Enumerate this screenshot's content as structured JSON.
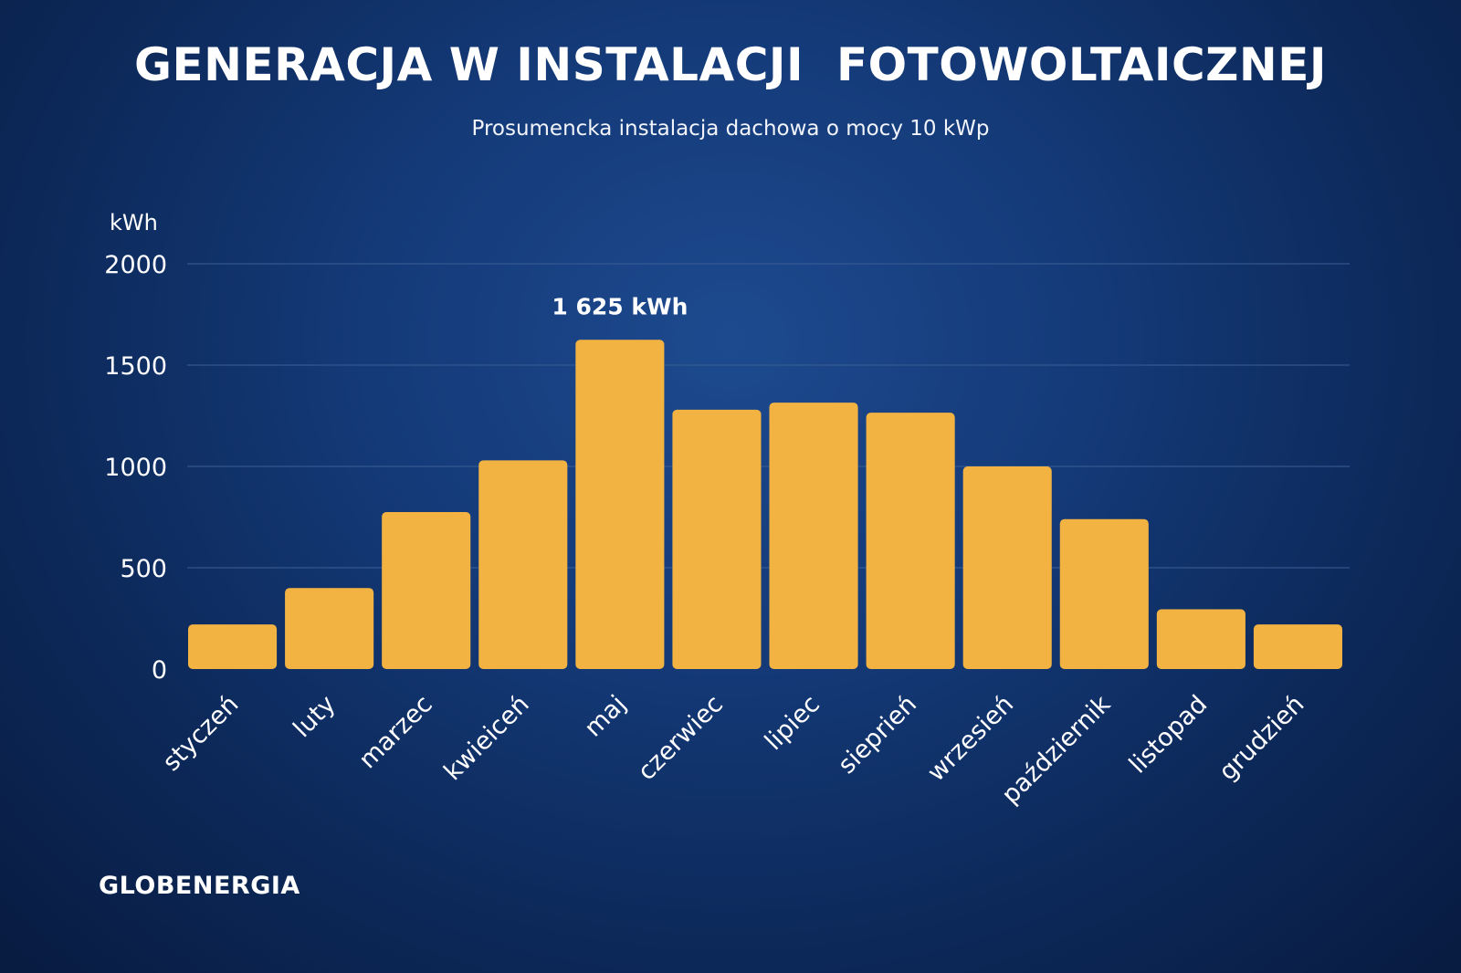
{
  "header": {
    "title": "GENERACJA W INSTALACJI  FOTOWOLTAICZNEJ",
    "subtitle": "Prosumencka instalacja dachowa o mocy 10 kWp"
  },
  "logo": {
    "text": "GLOBENERGIA"
  },
  "colors": {
    "bar": "#f3b343",
    "grid": "#3b5f95",
    "text": "#ffffff"
  },
  "chart_data": {
    "type": "bar",
    "ylabel": "kWh",
    "ylim": [
      0,
      2000
    ],
    "yticks": [
      "0",
      "500",
      "1000",
      "1500",
      "2000"
    ],
    "yticks_values": [
      0,
      500,
      1000,
      1500,
      2000
    ],
    "categories": [
      "styczeń",
      "luty",
      "marzec",
      "kwieiceń",
      "maj",
      "czerwiec",
      "lipiec",
      "sieprień",
      "wrzesień",
      "październik",
      "listopad",
      "grudzień"
    ],
    "values": [
      220,
      400,
      775,
      1030,
      1625,
      1280,
      1315,
      1265,
      1000,
      740,
      295,
      220
    ],
    "annotations": [
      {
        "category": "maj",
        "text": "1 625 kWh"
      }
    ],
    "grid": true,
    "legend": "none"
  }
}
